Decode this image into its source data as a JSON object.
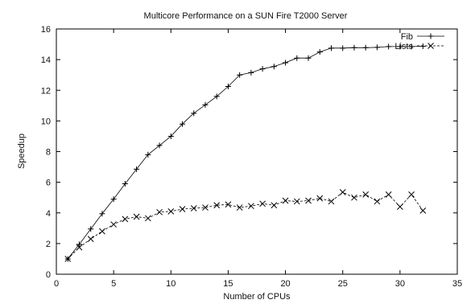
{
  "chart_data": {
    "type": "line",
    "title": "Multicore Performance on a SUN Fire T2000 Server",
    "xlabel": "Number of CPUs",
    "ylabel": "Speedup",
    "xlim": [
      0,
      35
    ],
    "ylim": [
      0,
      16
    ],
    "xticks": [
      "0",
      "5",
      "10",
      "15",
      "20",
      "25",
      "30",
      "35"
    ],
    "yticks": [
      "0",
      "2",
      "4",
      "6",
      "8",
      "10",
      "12",
      "14",
      "16"
    ],
    "grid": false,
    "legend_position": "top-right",
    "series": [
      {
        "name": "Fib",
        "marker": "plus",
        "line_style": "solid",
        "x": [
          1,
          2,
          3,
          4,
          5,
          6,
          7,
          8,
          9,
          10,
          11,
          12,
          13,
          14,
          15,
          16,
          17,
          18,
          19,
          20,
          21,
          22,
          23,
          24,
          25,
          26,
          27,
          28,
          29,
          30,
          31,
          32
        ],
        "y": [
          1.0,
          1.95,
          2.95,
          3.95,
          4.9,
          5.9,
          6.85,
          7.8,
          8.4,
          9.0,
          9.8,
          10.5,
          11.05,
          11.6,
          12.25,
          13.0,
          13.15,
          13.4,
          13.55,
          13.8,
          14.1,
          14.1,
          14.5,
          14.75,
          14.75,
          14.78,
          14.78,
          14.8,
          14.85,
          14.85,
          14.85,
          14.87
        ]
      },
      {
        "name": "Lists",
        "marker": "cross",
        "line_style": "dashed",
        "x": [
          1,
          2,
          3,
          4,
          5,
          6,
          7,
          8,
          9,
          10,
          11,
          12,
          13,
          14,
          15,
          16,
          17,
          18,
          19,
          20,
          21,
          22,
          23,
          24,
          25,
          26,
          27,
          28,
          29,
          30,
          31,
          32
        ],
        "y": [
          1.0,
          1.75,
          2.3,
          2.8,
          3.25,
          3.6,
          3.75,
          3.65,
          4.05,
          4.1,
          4.25,
          4.3,
          4.35,
          4.5,
          4.55,
          4.35,
          4.45,
          4.6,
          4.5,
          4.8,
          4.75,
          4.8,
          4.95,
          4.75,
          5.35,
          5.0,
          5.2,
          4.75,
          5.2,
          4.4,
          5.2,
          4.15
        ]
      }
    ]
  }
}
